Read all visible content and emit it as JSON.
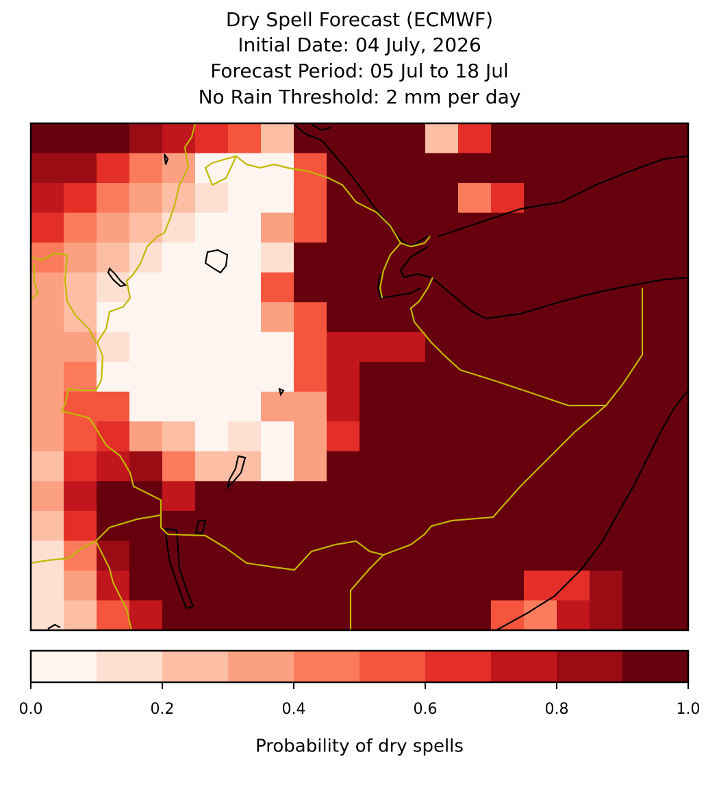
{
  "chart_data": {
    "type": "heatmap",
    "title": "Dry Spell Forecast (ECMWF)",
    "subtitles": [
      "Initial Date: 04 July, 2026",
      "Forecast Period: 05 Jul to 18 Jul",
      "No Rain Threshold: 2 mm per day"
    ],
    "values": [
      [
        0.95,
        0.95,
        0.95,
        0.85,
        0.75,
        0.6,
        0.5,
        0.25,
        0.95,
        0.95,
        0.95,
        0.95,
        0.25,
        0.65,
        0.95,
        0.95,
        0.95,
        0.95,
        0.95,
        0.95
      ],
      [
        0.85,
        0.85,
        0.65,
        0.45,
        0.35,
        0.05,
        0.05,
        0.05,
        0.55,
        0.95,
        0.95,
        0.95,
        0.95,
        0.9,
        0.95,
        0.95,
        0.95,
        0.95,
        0.95,
        0.95
      ],
      [
        0.75,
        0.65,
        0.45,
        0.35,
        0.25,
        0.15,
        0.05,
        0.05,
        0.55,
        0.95,
        0.95,
        0.95,
        0.95,
        0.45,
        0.65,
        0.95,
        0.95,
        0.95,
        0.95,
        0.95
      ],
      [
        0.6,
        0.45,
        0.35,
        0.2,
        0.15,
        0.05,
        0.05,
        0.35,
        0.55,
        0.95,
        0.95,
        0.95,
        0.95,
        0.95,
        0.95,
        0.95,
        0.95,
        0.95,
        0.95,
        0.95
      ],
      [
        0.45,
        0.35,
        0.25,
        0.15,
        0.05,
        0.05,
        0.05,
        0.1,
        0.9,
        0.95,
        0.95,
        0.95,
        0.95,
        0.95,
        0.95,
        0.95,
        0.95,
        0.95,
        0.95,
        0.95
      ],
      [
        0.35,
        0.25,
        0.15,
        0.05,
        0.05,
        0.05,
        0.05,
        0.5,
        0.95,
        0.95,
        0.95,
        0.95,
        0.95,
        0.95,
        0.95,
        0.95,
        0.95,
        0.95,
        0.95,
        0.95
      ],
      [
        0.3,
        0.2,
        0.05,
        0.05,
        0.05,
        0.05,
        0.05,
        0.35,
        0.55,
        0.95,
        0.95,
        0.95,
        0.95,
        0.95,
        0.95,
        0.95,
        0.95,
        0.95,
        0.95,
        0.95
      ],
      [
        0.3,
        0.35,
        0.1,
        0.05,
        0.05,
        0.05,
        0.05,
        0.05,
        0.5,
        0.75,
        0.7,
        0.75,
        0.95,
        0.95,
        0.95,
        0.95,
        0.95,
        0.95,
        0.95,
        0.95
      ],
      [
        0.3,
        0.45,
        0.05,
        0.05,
        0.05,
        0.05,
        0.05,
        0.05,
        0.55,
        0.75,
        0.95,
        0.95,
        0.95,
        0.95,
        0.95,
        0.95,
        0.95,
        0.95,
        0.95,
        0.95
      ],
      [
        0.35,
        0.5,
        0.5,
        0.05,
        0.05,
        0.05,
        0.05,
        0.3,
        0.35,
        0.75,
        0.95,
        0.95,
        0.95,
        0.95,
        0.95,
        0.95,
        0.95,
        0.95,
        0.95,
        0.95
      ],
      [
        0.3,
        0.5,
        0.6,
        0.3,
        0.2,
        0.05,
        0.1,
        0.05,
        0.35,
        0.6,
        0.95,
        0.95,
        0.95,
        0.95,
        0.95,
        0.95,
        0.95,
        0.95,
        0.95,
        0.95
      ],
      [
        0.25,
        0.6,
        0.75,
        0.85,
        0.45,
        0.2,
        0.25,
        0.05,
        0.3,
        0.95,
        0.95,
        0.95,
        0.95,
        0.95,
        0.95,
        0.95,
        0.95,
        0.95,
        0.95,
        0.95
      ],
      [
        0.35,
        0.7,
        0.9,
        0.95,
        0.75,
        0.95,
        0.95,
        0.95,
        0.95,
        0.95,
        0.95,
        0.95,
        0.95,
        0.95,
        0.95,
        0.95,
        0.95,
        0.95,
        0.95,
        0.95
      ],
      [
        0.2,
        0.6,
        0.95,
        0.95,
        0.95,
        0.95,
        0.95,
        0.95,
        0.95,
        0.95,
        0.95,
        0.95,
        0.95,
        0.95,
        0.95,
        0.95,
        0.95,
        0.95,
        0.95,
        0.95
      ],
      [
        0.1,
        0.4,
        0.85,
        0.95,
        0.95,
        0.95,
        0.95,
        0.95,
        0.95,
        0.95,
        0.95,
        0.95,
        0.95,
        0.95,
        0.95,
        0.95,
        0.95,
        0.95,
        0.95,
        0.95
      ],
      [
        0.1,
        0.3,
        0.7,
        0.9,
        0.95,
        0.95,
        0.95,
        0.95,
        0.95,
        0.95,
        0.95,
        0.95,
        0.95,
        0.95,
        0.95,
        0.6,
        0.65,
        0.85,
        0.95,
        0.95
      ],
      [
        0.1,
        0.25,
        0.55,
        0.75,
        0.95,
        0.95,
        0.95,
        0.95,
        0.95,
        0.95,
        0.95,
        0.95,
        0.95,
        0.95,
        0.55,
        0.45,
        0.75,
        0.85,
        0.95,
        0.95
      ]
    ],
    "bins": [
      0,
      0.1,
      0.2,
      0.3,
      0.4,
      0.5,
      0.6,
      0.7,
      0.8,
      0.9,
      1.0
    ],
    "colors": [
      "#fff5f0",
      "#fee0d2",
      "#fcbea5",
      "#fca082",
      "#fb7c5c",
      "#f5553d",
      "#e32f27",
      "#c1161b",
      "#9a0c14",
      "#67000d"
    ],
    "colorbar_ticks": [
      {
        "value": 0,
        "label": "0.0"
      },
      {
        "value": 0.2,
        "label": "0.2"
      },
      {
        "value": 0.4,
        "label": "0.4"
      },
      {
        "value": 0.6,
        "label": "0.6"
      },
      {
        "value": 0.8,
        "label": "0.8"
      },
      {
        "value": 1.0,
        "label": "1.0"
      }
    ],
    "colorbar_label": "Probability of dry spells"
  }
}
